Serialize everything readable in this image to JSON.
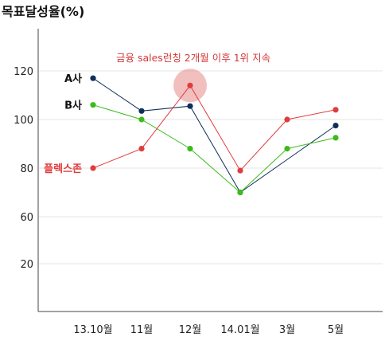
{
  "chart_data": {
    "type": "line",
    "title": "목표달성율(%)",
    "categories": [
      "13.10월",
      "11월",
      "12월",
      "14.01월",
      "3월",
      "5월"
    ],
    "y_ticks": [
      20,
      60,
      80,
      100,
      120
    ],
    "grid": "horizontal",
    "series": [
      {
        "name": "A사",
        "color": "#0f2f5a",
        "values": [
          117,
          103.5,
          105.5,
          70,
          null,
          97.5
        ]
      },
      {
        "name": "B사",
        "color": "#3cbb1c",
        "values": [
          106,
          100,
          88,
          70,
          88,
          92.5
        ]
      },
      {
        "name": "플렉스존",
        "color": "#e03c3c",
        "values": [
          80,
          88,
          114,
          79,
          100,
          104
        ]
      }
    ],
    "annotation": {
      "text": "금융 sales런칭 2개월 이후 1위 지속",
      "category": "12월",
      "series": "플렉스존"
    }
  }
}
